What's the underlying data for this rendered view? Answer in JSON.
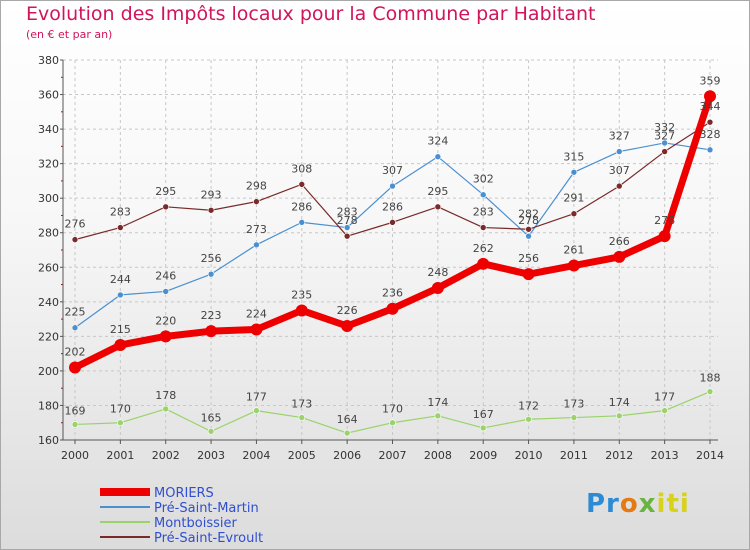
{
  "chart_data": {
    "type": "line",
    "title": "Evolution des Impôts locaux pour la Commune par Habitant",
    "subtitle": "(en € et par an)",
    "xlabel": "",
    "ylabel": "",
    "categories": [
      "2000",
      "2001",
      "2002",
      "2003",
      "2004",
      "2005",
      "2006",
      "2007",
      "2008",
      "2009",
      "2010",
      "2011",
      "2012",
      "2013",
      "2014"
    ],
    "ylim": [
      160,
      380
    ],
    "yticks": [
      160,
      180,
      200,
      220,
      240,
      260,
      280,
      300,
      320,
      340,
      360,
      380
    ],
    "grid": true,
    "legend_position": "bottom-left",
    "series": [
      {
        "name": "MORIERS",
        "color": "#ee0000",
        "values": [
          202,
          215,
          220,
          223,
          224,
          235,
          226,
          236,
          248,
          262,
          256,
          261,
          266,
          278,
          359
        ]
      },
      {
        "name": "Pré-Saint-Martin",
        "color": "#4a90d0",
        "values": [
          225,
          244,
          246,
          256,
          273,
          286,
          283,
          307,
          324,
          302,
          278,
          315,
          327,
          332,
          328
        ]
      },
      {
        "name": "Montboissier",
        "color": "#99d36a",
        "values": [
          169,
          170,
          178,
          165,
          177,
          173,
          164,
          170,
          174,
          167,
          172,
          173,
          174,
          177,
          188
        ]
      },
      {
        "name": "Pré-Saint-Evroult",
        "color": "#7a2a2a",
        "values": [
          276,
          283,
          295,
          293,
          298,
          308,
          278,
          286,
          295,
          283,
          282,
          291,
          307,
          327,
          344
        ]
      }
    ]
  },
  "logo": {
    "p1": "Pr",
    "p2": "o",
    "p3": "x",
    "p4": "iti"
  }
}
